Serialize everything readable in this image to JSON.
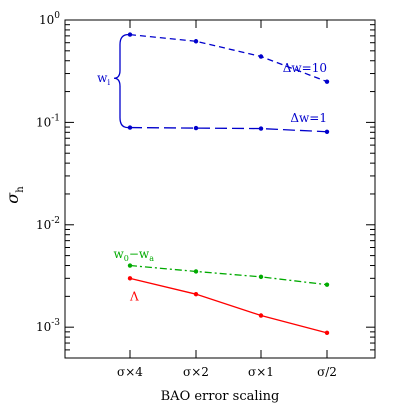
{
  "chart_data": {
    "type": "line",
    "xlabel": "BAO error scaling",
    "ylabel": "σ",
    "ylabel_sub": "h",
    "categories": [
      "σ×4",
      "σ×2",
      "σ×1",
      "σ/2"
    ],
    "yscale": "log",
    "ylim": [
      0.0005,
      1
    ],
    "yticks": [
      {
        "value": 1,
        "base": "10",
        "exp": "0"
      },
      {
        "value": 0.1,
        "base": "10",
        "exp": "-1"
      },
      {
        "value": 0.01,
        "base": "10",
        "exp": "-2"
      },
      {
        "value": 0.001,
        "base": "10",
        "exp": "-3"
      }
    ],
    "grid": false,
    "legend": "none",
    "series": [
      {
        "values": [
          0.72,
          0.62,
          0.44,
          0.25
        ],
        "color": "#0000cc",
        "dash": "6,4"
      },
      {
        "values": [
          0.089,
          0.088,
          0.087,
          0.081
        ],
        "color": "#0000cc",
        "dash": "12,5"
      },
      {
        "values": [
          0.004,
          0.0035,
          0.0031,
          0.0026
        ],
        "color": "#00aa00",
        "dash": "7,3,2,3"
      },
      {
        "values": [
          0.003,
          0.0021,
          0.0013,
          0.00088
        ],
        "color": "#ff0000",
        "dash": ""
      }
    ],
    "annotations": [
      {
        "text": "Δw=10",
        "x": 3,
        "y": 0.34,
        "color": "#0000cc",
        "anchor": "end"
      },
      {
        "text": "Δw=1",
        "x": 3,
        "y": 0.11,
        "color": "#0000cc",
        "anchor": "end"
      },
      {
        "text": "w",
        "sub": "i",
        "x": -0.4,
        "y": 0.27,
        "color": "#0000cc",
        "anchor": "end"
      },
      {
        "text": "w",
        "sub": "0",
        "text2": "−w",
        "sub2": "a",
        "x": -0.25,
        "y": 0.0052,
        "color": "#00aa00",
        "anchor": "start"
      },
      {
        "text": "Λ",
        "x": 0,
        "y": 0.002,
        "color": "#ff0000",
        "anchor": "start"
      }
    ]
  }
}
